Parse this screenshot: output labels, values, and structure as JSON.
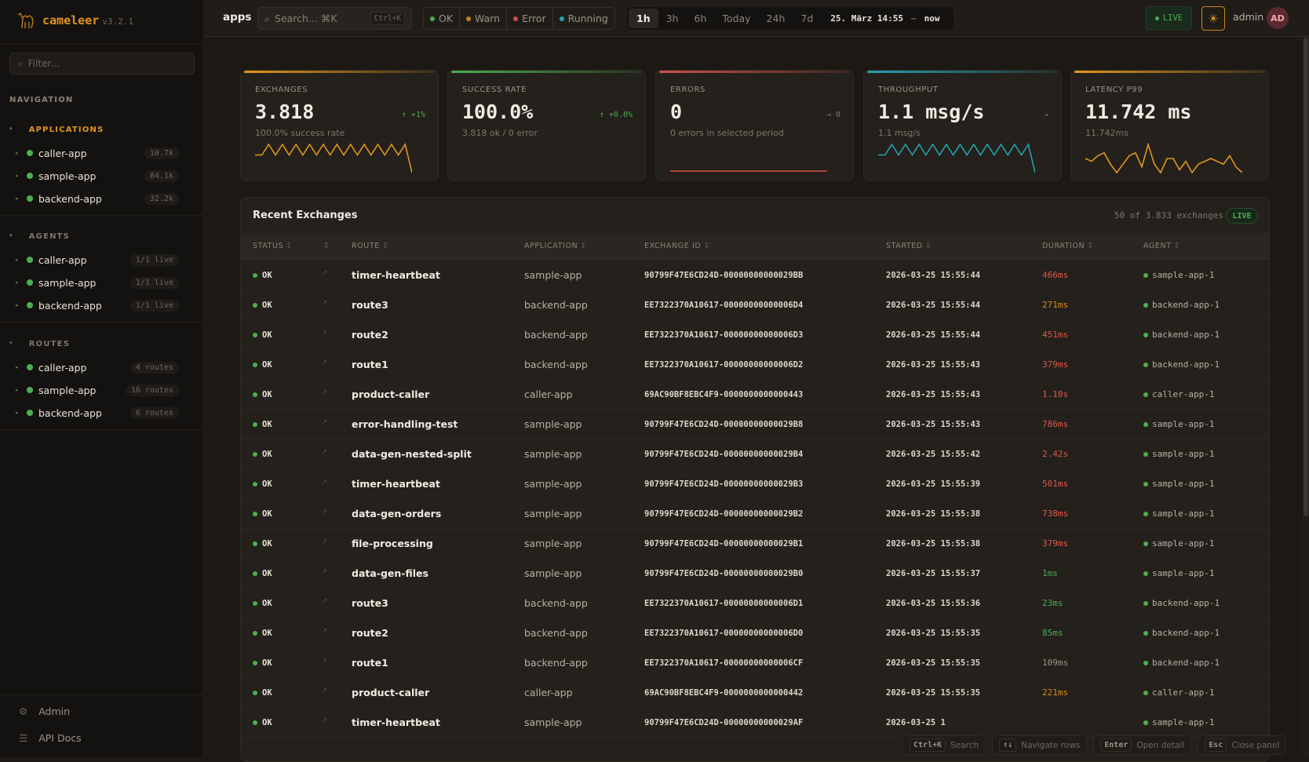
{
  "app": {
    "name": "cameleer",
    "version": "v3.2.1"
  },
  "sidebar": {
    "filter_placeholder": "Filter...",
    "navigation_label": "NAVIGATION",
    "groups": [
      {
        "label": "APPLICATIONS",
        "active": true,
        "items": [
          {
            "label": "caller-app",
            "badge": "10.7k"
          },
          {
            "label": "sample-app",
            "badge": "84.1k"
          },
          {
            "label": "backend-app",
            "badge": "32.2k"
          }
        ]
      },
      {
        "label": "AGENTS",
        "active": false,
        "items": [
          {
            "label": "caller-app",
            "badge": "1/1 live"
          },
          {
            "label": "sample-app",
            "badge": "1/1 live"
          },
          {
            "label": "backend-app",
            "badge": "1/1 live"
          }
        ]
      },
      {
        "label": "ROUTES",
        "active": false,
        "items": [
          {
            "label": "caller-app",
            "badge": "4 routes"
          },
          {
            "label": "sample-app",
            "badge": "16 routes"
          },
          {
            "label": "backend-app",
            "badge": "6 routes"
          }
        ]
      }
    ],
    "footer": [
      {
        "label": "Admin",
        "icon": "gear-icon"
      },
      {
        "label": "API Docs",
        "icon": "menu-icon"
      }
    ]
  },
  "topbar": {
    "title": "apps",
    "search_placeholder": "Search... ⌘K",
    "search_shortcut": "Ctrl+K",
    "status_filters": [
      {
        "label": "OK",
        "color": "#4caf50"
      },
      {
        "label": "Warn",
        "color": "#c58318"
      },
      {
        "label": "Error",
        "color": "#d0524a"
      },
      {
        "label": "Running",
        "color": "#27a0b0"
      }
    ],
    "time_ranges": [
      "1h",
      "3h",
      "6h",
      "Today",
      "24h",
      "7d"
    ],
    "selected_range": "1h",
    "range_from": "25. März 14:55",
    "range_sep": "–",
    "range_to": "now",
    "live_label": "LIVE",
    "user": "admin",
    "avatar_initials": "AD"
  },
  "kpis": [
    {
      "label": "EXCHANGES",
      "value": "3.818",
      "trend": "↑ +1%",
      "trend_color": "#4caf50",
      "sub": "100.0% success rate",
      "accent": "#e0961c",
      "spark_color": "#e0961c",
      "sparkline": [
        2,
        2,
        8,
        2,
        8,
        2,
        8,
        2,
        8,
        2,
        8,
        2,
        8,
        2,
        8,
        2,
        8,
        2,
        8,
        2,
        8,
        2,
        8,
        -8
      ]
    },
    {
      "label": "SUCCESS RATE",
      "value": "100.0%",
      "trend": "↑ +0.0%",
      "trend_color": "#4caf50",
      "sub": "3.818 ok / 0 error",
      "accent": "#4caf50",
      "spark_color": "",
      "sparkline": []
    },
    {
      "label": "ERRORS",
      "value": "0",
      "trend": "→ 0",
      "trend_color": "#7d766a",
      "sub": "0 errors in selected period",
      "accent": "#d0524a",
      "spark_color": "#d0524a",
      "sparkline": [
        0,
        0
      ]
    },
    {
      "label": "THROUGHPUT",
      "value": "1.1 msg/s",
      "trend": "→",
      "trend_color": "#7d766a",
      "sub": "1.1 msg/s",
      "accent": "#27a0b0",
      "spark_color": "#27a0b0",
      "sparkline": [
        2,
        2,
        8,
        2,
        8,
        2,
        8,
        2,
        8,
        2,
        8,
        2,
        8,
        2,
        8,
        2,
        8,
        2,
        8,
        2,
        8,
        2,
        8,
        -8
      ]
    },
    {
      "label": "LATENCY P99",
      "value": "11.742 ms",
      "trend": "",
      "trend_color": "#7d766a",
      "sub": "11.742ms",
      "accent": "#e0961c",
      "spark_color": "#e0961c",
      "sparkline": [
        5,
        4,
        6,
        7,
        3,
        0,
        3,
        6,
        7,
        2,
        10,
        3,
        0,
        5,
        5,
        1,
        4,
        0,
        3,
        4,
        5,
        4,
        3,
        6,
        2,
        0
      ]
    }
  ],
  "exchanges": {
    "title": "Recent Exchanges",
    "meta": "50 of 3.833 exchanges",
    "live_label": "LIVE",
    "columns": [
      "STATUS",
      "",
      "ROUTE",
      "APPLICATION",
      "EXCHANGE ID",
      "STARTED",
      "DURATION",
      "AGENT"
    ],
    "rows": [
      {
        "status": "OK",
        "route": "timer-heartbeat",
        "app": "sample-app",
        "id": "90799F47E6CD24D-00000000000029BB",
        "started": "2026-03-25 15:55:44",
        "duration": "466ms",
        "tone": "red",
        "agent": "sample-app-1"
      },
      {
        "status": "OK",
        "route": "route3",
        "app": "backend-app",
        "id": "EE7322370A10617-00000000000006D4",
        "started": "2026-03-25 15:55:44",
        "duration": "271ms",
        "tone": "orange",
        "agent": "backend-app-1"
      },
      {
        "status": "OK",
        "route": "route2",
        "app": "backend-app",
        "id": "EE7322370A10617-00000000000006D3",
        "started": "2026-03-25 15:55:44",
        "duration": "451ms",
        "tone": "red",
        "agent": "backend-app-1"
      },
      {
        "status": "OK",
        "route": "route1",
        "app": "backend-app",
        "id": "EE7322370A10617-00000000000006D2",
        "started": "2026-03-25 15:55:43",
        "duration": "379ms",
        "tone": "red",
        "agent": "backend-app-1"
      },
      {
        "status": "OK",
        "route": "product-caller",
        "app": "caller-app",
        "id": "69AC90BF8EBC4F9-0000000000000443",
        "started": "2026-03-25 15:55:43",
        "duration": "1.10s",
        "tone": "red",
        "agent": "caller-app-1"
      },
      {
        "status": "OK",
        "route": "error-handling-test",
        "app": "sample-app",
        "id": "90799F47E6CD24D-00000000000029B8",
        "started": "2026-03-25 15:55:43",
        "duration": "786ms",
        "tone": "red",
        "agent": "sample-app-1"
      },
      {
        "status": "OK",
        "route": "data-gen-nested-split",
        "app": "sample-app",
        "id": "90799F47E6CD24D-00000000000029B4",
        "started": "2026-03-25 15:55:42",
        "duration": "2.42s",
        "tone": "red",
        "agent": "sample-app-1"
      },
      {
        "status": "OK",
        "route": "timer-heartbeat",
        "app": "sample-app",
        "id": "90799F47E6CD24D-00000000000029B3",
        "started": "2026-03-25 15:55:39",
        "duration": "501ms",
        "tone": "red",
        "agent": "sample-app-1"
      },
      {
        "status": "OK",
        "route": "data-gen-orders",
        "app": "sample-app",
        "id": "90799F47E6CD24D-00000000000029B2",
        "started": "2026-03-25 15:55:38",
        "duration": "738ms",
        "tone": "red",
        "agent": "sample-app-1"
      },
      {
        "status": "OK",
        "route": "file-processing",
        "app": "sample-app",
        "id": "90799F47E6CD24D-00000000000029B1",
        "started": "2026-03-25 15:55:38",
        "duration": "379ms",
        "tone": "red",
        "agent": "sample-app-1"
      },
      {
        "status": "OK",
        "route": "data-gen-files",
        "app": "sample-app",
        "id": "90799F47E6CD24D-00000000000029B0",
        "started": "2026-03-25 15:55:37",
        "duration": "1ms",
        "tone": "green",
        "agent": "sample-app-1"
      },
      {
        "status": "OK",
        "route": "route3",
        "app": "backend-app",
        "id": "EE7322370A10617-00000000000006D1",
        "started": "2026-03-25 15:55:36",
        "duration": "23ms",
        "tone": "green",
        "agent": "backend-app-1"
      },
      {
        "status": "OK",
        "route": "route2",
        "app": "backend-app",
        "id": "EE7322370A10617-00000000000006D0",
        "started": "2026-03-25 15:55:35",
        "duration": "85ms",
        "tone": "green",
        "agent": "backend-app-1"
      },
      {
        "status": "OK",
        "route": "route1",
        "app": "backend-app",
        "id": "EE7322370A10617-00000000000006CF",
        "started": "2026-03-25 15:55:35",
        "duration": "109ms",
        "tone": "gray",
        "agent": "backend-app-1"
      },
      {
        "status": "OK",
        "route": "product-caller",
        "app": "caller-app",
        "id": "69AC90BF8EBC4F9-0000000000000442",
        "started": "2026-03-25 15:55:35",
        "duration": "221ms",
        "tone": "orange",
        "agent": "caller-app-1"
      },
      {
        "status": "OK",
        "route": "timer-heartbeat",
        "app": "sample-app",
        "id": "90799F47E6CD24D-00000000000029AF",
        "started": "2026-03-25 1",
        "duration": "",
        "tone": "gray",
        "agent": "sample-app-1"
      }
    ]
  },
  "shortcuts": [
    {
      "key": "Ctrl+K",
      "label": "Search"
    },
    {
      "key": "↑↓",
      "label": "Navigate rows"
    },
    {
      "key": "Enter",
      "label": "Open detail"
    },
    {
      "key": "Esc",
      "label": "Close panel"
    }
  ],
  "tone_colors": {
    "red": "#e0574a",
    "orange": "#d98a1c",
    "green": "#4caf50",
    "gray": "#9b9285"
  }
}
